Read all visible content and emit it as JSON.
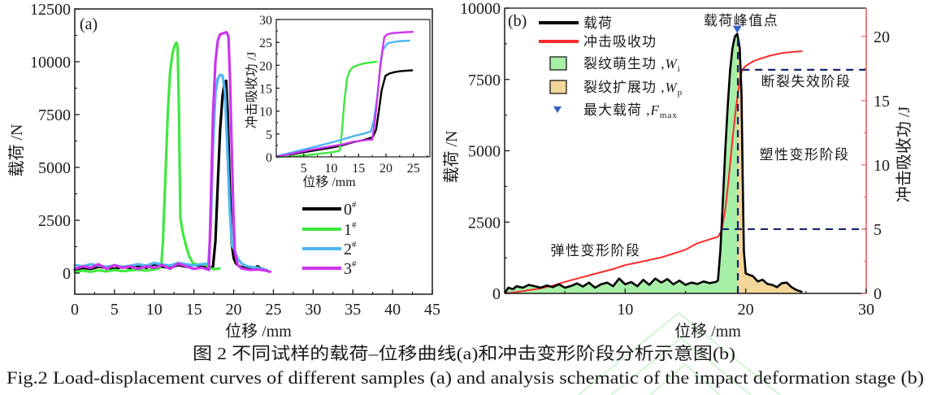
{
  "figure": {
    "caption_cn": "图 2  不同试样的载荷–位移曲线(a)和冲击变形阶段分析示意图(b)",
    "caption_en": "Fig.2  Load-displacement curves of different samples (a) and analysis schematic of the impact deformation stage (b)"
  },
  "chart_data": [
    {
      "panel": "(a)",
      "type": "line",
      "title": "",
      "xlabel": "位移 /mm",
      "ylabel": "载荷 /N",
      "xlim": [
        0,
        45
      ],
      "ylim": [
        -1000,
        12500
      ],
      "grid": false,
      "x_ticks": [
        0,
        5,
        10,
        15,
        20,
        25,
        30,
        35,
        40,
        45
      ],
      "x_tick_labels": [
        "0",
        "5",
        "10",
        "15",
        "20",
        "25",
        "30",
        "35",
        "40",
        "45"
      ],
      "x_minor_step": 2.5,
      "y_ticks": [
        0,
        2500,
        5000,
        7500,
        10000,
        12500
      ],
      "y_tick_labels": [
        "0",
        "2500",
        "5000",
        "7500",
        "10000",
        "12500"
      ],
      "y_minor_step": 1250,
      "legend": {
        "position": "center-right",
        "entries": [
          {
            "label": "0",
            "sup": "#"
          },
          {
            "label": "1",
            "sup": "#"
          },
          {
            "label": "2",
            "sup": "#"
          },
          {
            "label": "3",
            "sup": "#"
          }
        ]
      },
      "series": [
        {
          "id": "0",
          "name": "0#",
          "color": "#000000",
          "x": [
            0,
            1,
            2,
            3,
            4,
            5,
            6,
            7,
            8,
            9,
            10,
            11,
            12,
            13,
            14,
            15,
            16,
            17,
            17.4,
            17.7,
            18.0,
            18.3,
            18.6,
            18.85,
            19.05,
            19.25,
            19.5,
            19.75,
            20.0,
            20.3,
            20.7,
            21.2,
            21.8,
            22.5,
            23.0,
            23.4,
            23.8,
            24.2
          ],
          "y": [
            150,
            250,
            200,
            300,
            250,
            200,
            300,
            250,
            350,
            250,
            420,
            300,
            250,
            380,
            300,
            420,
            300,
            250,
            300,
            1500,
            4200,
            6800,
            8400,
            9000,
            9100,
            7600,
            4200,
            1400,
            700,
            450,
            320,
            260,
            200,
            180,
            320,
            220,
            180,
            120
          ]
        },
        {
          "id": "1",
          "name": "1#",
          "color": "#3fe83f",
          "x": [
            0,
            1,
            2,
            3,
            4,
            5,
            6,
            7,
            8,
            9,
            10,
            10.6,
            10.9,
            11.1,
            11.4,
            11.7,
            12.0,
            12.3,
            12.6,
            12.8,
            12.95,
            13.1,
            13.2,
            13.3,
            13.6,
            14.0,
            14.4,
            14.9,
            15.5,
            16.0,
            16.5,
            17.0,
            17.5,
            18.2
          ],
          "y": [
            50,
            120,
            60,
            130,
            80,
            150,
            90,
            130,
            160,
            110,
            180,
            220,
            450,
            1500,
            4500,
            7500,
            9500,
            10400,
            10800,
            10900,
            10700,
            8000,
            5000,
            2600,
            1900,
            1300,
            800,
            450,
            400,
            420,
            380,
            250,
            180,
            220
          ]
        },
        {
          "id": "2",
          "name": "2#",
          "color": "#4fb6f2",
          "x": [
            0,
            1,
            2,
            3,
            4,
            5,
            6,
            7,
            8,
            9,
            10,
            11,
            12,
            13,
            14,
            15,
            16,
            16.8,
            17.1,
            17.4,
            17.7,
            18.0,
            18.3,
            18.6,
            18.9,
            19.2,
            19.5,
            19.8,
            20.1,
            20.5,
            21.0,
            21.5,
            22.0,
            23.0,
            24.0
          ],
          "y": [
            380,
            320,
            420,
            350,
            300,
            360,
            300,
            350,
            420,
            350,
            480,
            400,
            360,
            480,
            420,
            360,
            420,
            450,
            2000,
            6000,
            8500,
            9200,
            9380,
            9350,
            8600,
            6000,
            3000,
            1300,
            1100,
            700,
            450,
            350,
            300,
            250,
            150
          ]
        },
        {
          "id": "3",
          "name": "3#",
          "color": "#cc35ee",
          "x": [
            0,
            1,
            2,
            3,
            4,
            5,
            6,
            7,
            8,
            9,
            10,
            11,
            12,
            13,
            14,
            15,
            16,
            16.9,
            17.1,
            17.4,
            17.7,
            18.0,
            18.3,
            18.7,
            19.1,
            19.35,
            19.55,
            19.75,
            19.95,
            20.15,
            20.5,
            21,
            22,
            23,
            24,
            24.6
          ],
          "y": [
            200,
            320,
            250,
            420,
            200,
            380,
            250,
            320,
            200,
            320,
            250,
            380,
            200,
            450,
            320,
            200,
            260,
            150,
            3000,
            7500,
            10000,
            11000,
            11300,
            11350,
            11400,
            11200,
            9000,
            6000,
            3000,
            1000,
            400,
            220,
            150,
            170,
            120,
            60
          ]
        }
      ],
      "inset": {
        "type": "line",
        "xlabel": "位移 /mm",
        "ylabel": "冲击吸收功 /J",
        "xlim": [
          0,
          28
        ],
        "ylim": [
          0,
          30
        ],
        "x_ticks": [
          5,
          10,
          15,
          20,
          25
        ],
        "x_tick_labels": [
          "5",
          "10",
          "15",
          "20",
          "25"
        ],
        "x_minor_step": 2.5,
        "y_ticks": [
          0,
          5,
          10,
          15,
          20,
          25,
          30
        ],
        "y_tick_labels": [
          "0",
          "5",
          "10",
          "15",
          "20",
          "25",
          "30"
        ],
        "y_minor_step": 2.5,
        "series": [
          {
            "id": "0",
            "name": "0#",
            "color": "#000000",
            "x": [
              0,
              2,
              4,
              6,
              8,
              10,
              12,
              14,
              16,
              17.6,
              18.2,
              18.7,
              19.2,
              19.9,
              20.6,
              21.5,
              22.5,
              23.5,
              24.9
            ],
            "y": [
              0,
              0.4,
              0.8,
              1.2,
              1.6,
              2.0,
              2.5,
              3.2,
              3.7,
              4.3,
              6,
              10,
              14.5,
              17.7,
              18.2,
              18.5,
              18.7,
              18.8,
              18.9
            ]
          },
          {
            "id": "1",
            "name": "1#",
            "color": "#3fe83f",
            "x": [
              0,
              2,
              4,
              6,
              8,
              10,
              11.2,
              11.6,
              12.0,
              12.4,
              12.9,
              13.4,
              14,
              15,
              16,
              17,
              18.4
            ],
            "y": [
              0,
              0.1,
              0.2,
              0.4,
              0.7,
              1.0,
              1.2,
              1.5,
              6,
              12,
              17.2,
              18.8,
              19.6,
              20.1,
              20.4,
              20.6,
              20.8
            ]
          },
          {
            "id": "2",
            "name": "2#",
            "color": "#4fb6f2",
            "x": [
              0,
              2,
              4,
              6,
              8,
              10,
              12,
              14,
              16,
              17.2,
              17.8,
              18.4,
              18.9,
              19.4,
              20.3,
              21,
              22,
              23,
              24.4
            ],
            "y": [
              0.1,
              0.7,
              1.3,
              1.9,
              2.5,
              3.1,
              3.8,
              4.5,
              5.1,
              5.5,
              8,
              13,
              19,
              23.3,
              24.8,
              25.0,
              25.2,
              25.3,
              25.4
            ]
          },
          {
            "id": "3",
            "name": "3#",
            "color": "#cc35ee",
            "x": [
              0,
              2,
              4,
              6,
              8,
              10,
              12,
              14,
              16,
              17.5,
              18.0,
              18.5,
              19.0,
              19.7,
              20.3,
              21,
              22,
              23,
              24,
              25.0
            ],
            "y": [
              0,
              0.5,
              1.0,
              1.5,
              1.9,
              2.3,
              2.7,
              3.3,
              3.6,
              3.8,
              8,
              14,
              20.5,
              26.2,
              26.8,
              27.0,
              27.1,
              27.2,
              27.25,
              27.3
            ]
          }
        ]
      }
    },
    {
      "panel": "(b)",
      "type": "line",
      "title": "",
      "xlabel": "位移 /mm",
      "ylabel": "载荷 /N",
      "y2label": "冲击吸收功 /J",
      "xlim": [
        0,
        30
      ],
      "ylim": [
        0,
        10000
      ],
      "y2lim": [
        0,
        22.2
      ],
      "grid": false,
      "x_ticks": [
        10,
        20,
        30
      ],
      "x_tick_labels": [
        "10",
        "20",
        "30"
      ],
      "x_minor_step": 5,
      "y_ticks": [
        0,
        2500,
        5000,
        7500,
        10000
      ],
      "y_tick_labels": [
        "0",
        "2500",
        "5000",
        "7500",
        "10000"
      ],
      "y_minor_step": 1250,
      "y2_ticks": [
        0,
        5,
        10,
        15,
        20
      ],
      "y2_tick_labels": [
        "0",
        "5",
        "10",
        "15",
        "20"
      ],
      "y2_minor_step": 2.5,
      "y2_axis_color": "#f07070",
      "series": [
        {
          "id": "load",
          "name": "载荷",
          "axis": "left",
          "color": "#000000",
          "x": [
            0,
            0.3,
            0.7,
            1,
            1.5,
            2,
            2.5,
            3,
            3.5,
            4,
            4.5,
            5,
            5.5,
            6,
            6.5,
            7,
            7.5,
            8,
            8.5,
            9,
            9.5,
            10,
            10.5,
            11,
            11.5,
            12,
            12.5,
            13,
            13.5,
            14,
            14.5,
            15,
            15.5,
            16,
            16.5,
            17,
            17.5,
            17.7,
            17.9,
            18.1,
            18.3,
            18.5,
            18.7,
            18.9,
            19.1,
            19.3,
            19.5,
            19.65,
            19.75,
            19.85,
            20.0,
            20.3,
            20.6,
            21.0,
            21.4,
            21.8,
            22.2,
            22.6,
            23.0,
            23.4,
            23.8,
            24.2,
            24.7
          ],
          "y": [
            0,
            200,
            150,
            250,
            200,
            300,
            250,
            200,
            280,
            220,
            320,
            200,
            260,
            350,
            240,
            380,
            200,
            320,
            380,
            250,
            520,
            320,
            400,
            250,
            480,
            300,
            520,
            380,
            500,
            320,
            450,
            300,
            380,
            330,
            420,
            360,
            400,
            450,
            1500,
            3200,
            5000,
            6500,
            7800,
            8600,
            9000,
            9100,
            8600,
            7000,
            4000,
            1500,
            700,
            650,
            600,
            420,
            480,
            330,
            300,
            220,
            360,
            380,
            220,
            120,
            50
          ]
        },
        {
          "id": "energy",
          "name": "冲击吸收功",
          "axis": "right",
          "color": "#ff2a2a",
          "x": [
            0,
            1,
            2,
            3,
            4,
            5,
            6,
            7,
            8,
            9,
            10,
            11,
            12,
            13,
            14,
            15,
            16,
            17,
            17.7,
            18.0,
            18.3,
            18.6,
            18.9,
            19.2,
            19.5,
            19.7,
            20.0,
            20.5,
            21,
            21.5,
            22,
            22.5,
            23,
            23.5,
            24,
            24.7
          ],
          "y": [
            0,
            0.1,
            0.25,
            0.4,
            0.6,
            0.9,
            1.15,
            1.4,
            1.65,
            1.9,
            2.2,
            2.4,
            2.6,
            2.8,
            3.1,
            3.4,
            3.9,
            4.2,
            4.4,
            4.9,
            6.5,
            9,
            12,
            14.5,
            16.5,
            17.4,
            17.7,
            18.0,
            18.2,
            18.35,
            18.5,
            18.6,
            18.7,
            18.75,
            18.8,
            18.85
          ]
        }
      ],
      "areas": [
        {
          "id": "crack-initiation",
          "name": "裂纹萌生功, Wi",
          "color": "#a6efa6",
          "from": 0,
          "to": 19.35
        },
        {
          "id": "crack-propagation",
          "name": "裂纹扩展功, Wp",
          "color": "#f3d699",
          "from": 19.35,
          "to": 24.7
        }
      ],
      "marker": {
        "name": "最大载荷, Fmax",
        "x": 19.3,
        "y": 9100,
        "color": "#3462c4"
      },
      "reference_lines": [
        {
          "id": "peak-vertical",
          "orientation": "vertical",
          "axis": "left",
          "x": 19.35,
          "from": 0,
          "to": 9100
        },
        {
          "id": "elastic-plastic-boundary",
          "orientation": "horizontal",
          "axis": "right",
          "y": 5,
          "from": 18.0,
          "to": 30
        },
        {
          "id": "plastic-fracture-boundary",
          "orientation": "horizontal",
          "axis": "right",
          "y": 17.4,
          "from": 19.7,
          "to": 30
        }
      ],
      "reference_line_color": "#14246b",
      "annotations": [
        {
          "id": "peak-point",
          "text": "载荷峰值点"
        },
        {
          "id": "fracture-failure-stage",
          "text": "断裂失效阶段"
        },
        {
          "id": "plastic-deformation-stage",
          "text": "塑性变形阶段"
        },
        {
          "id": "elastic-deformation-stage",
          "text": "弹性变形阶段"
        }
      ],
      "legend": {
        "position": "top-left",
        "entries": [
          {
            "label": "载荷",
            "kind": "line",
            "color": "#000000"
          },
          {
            "label": "冲击吸收功",
            "kind": "line",
            "color": "#ff2a2a"
          },
          {
            "label": "裂纹萌生功 ,",
            "var": "W",
            "sub": "i",
            "kind": "box",
            "color": "#a6efa6"
          },
          {
            "label": "裂纹扩展功 ,",
            "var": "W",
            "sub": "p",
            "kind": "box",
            "color": "#f3d699"
          },
          {
            "label": "最大载荷 ,",
            "var": "F",
            "sub": "max",
            "kind": "marker",
            "color": "#3462c4"
          }
        ]
      }
    }
  ]
}
